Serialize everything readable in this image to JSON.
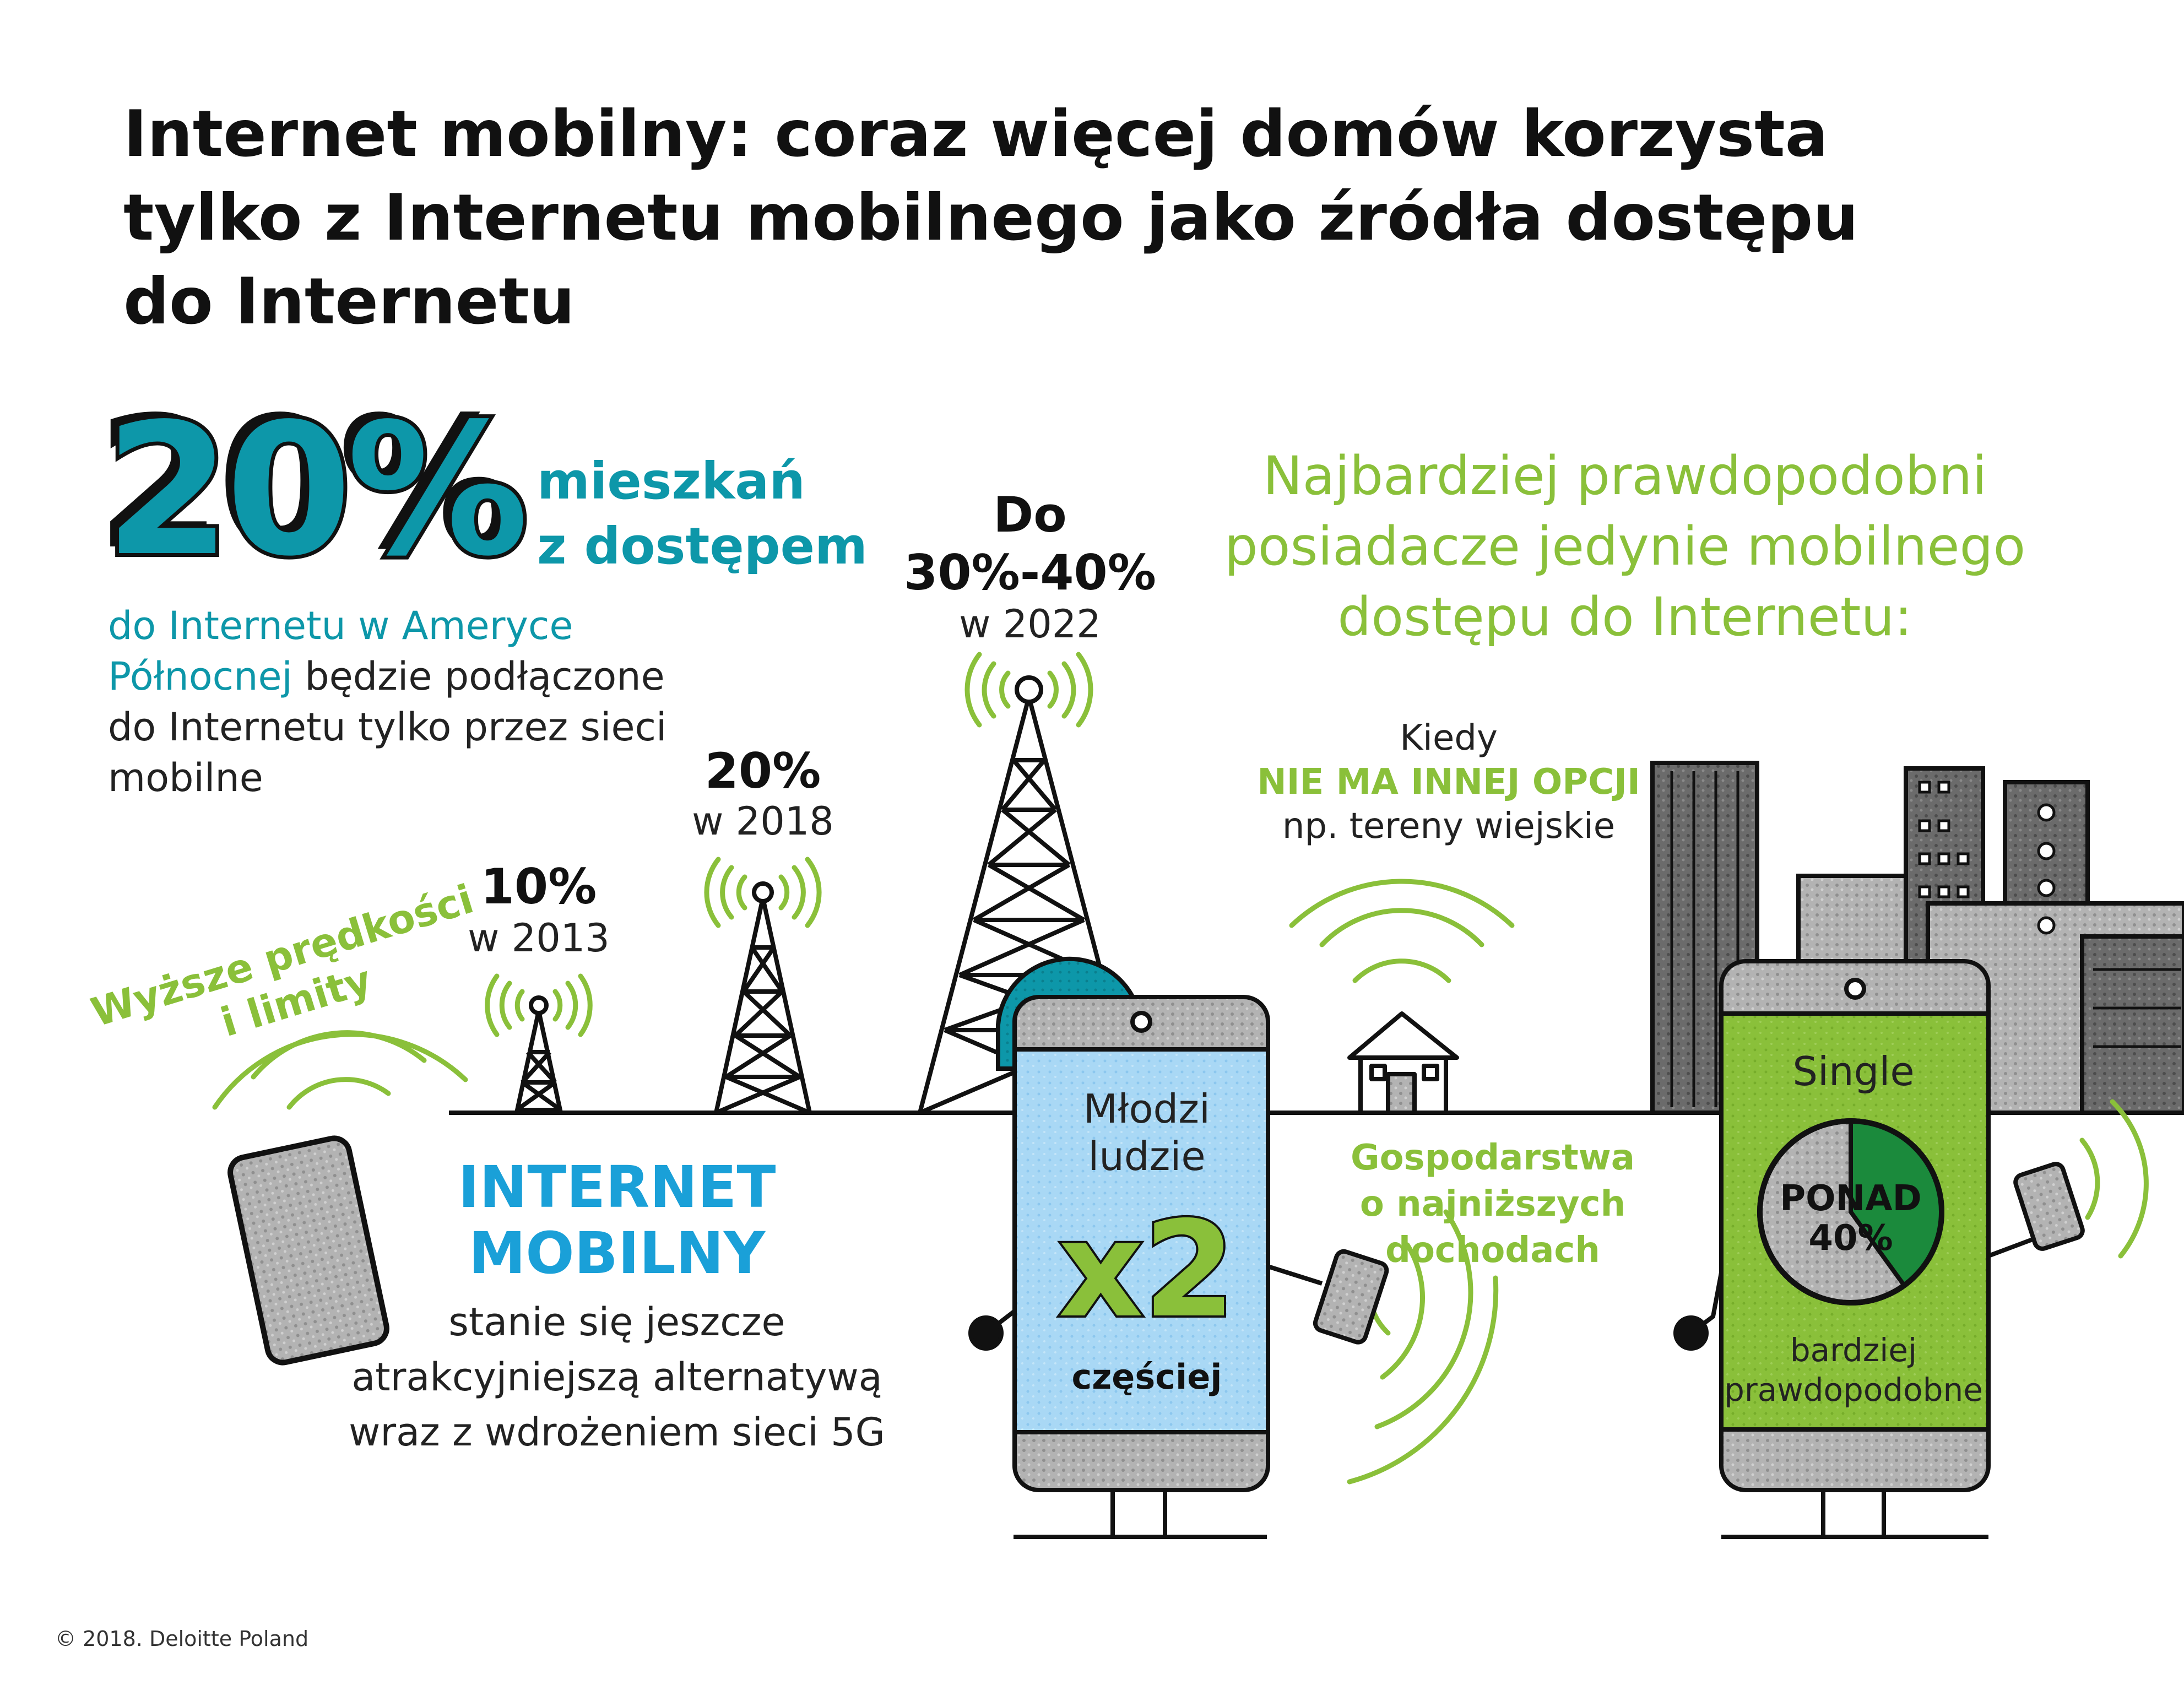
{
  "title": {
    "line1": "Internet mobilny: coraz więcej domów korzysta",
    "line2": "tylko z Internetu mobilnego jako źródła dostępu",
    "line3": "do Internetu"
  },
  "headline_stat": {
    "value": "20%",
    "label_line1": "mieszkań",
    "label_line2": "z dostępem",
    "desc_highlight": "do Internetu w Ameryce Północnej",
    "desc_rest": " będzie podłączone do Internetu tylko przez sieci mobilne"
  },
  "towers": [
    {
      "pct": "10%",
      "year": "w 2013"
    },
    {
      "pct": "20%",
      "year": "w 2018"
    },
    {
      "prefix": "Do",
      "pct": "30%-40%",
      "year": "w 2022"
    }
  ],
  "speed_note": {
    "line1": "Wyższe prędkości",
    "line2": "i limity"
  },
  "mobile_internet": {
    "head_line1": "INTERNET",
    "head_line2": "MOBILNY",
    "body_line1": "stanie się jeszcze",
    "body_line2": "atrakcyjniejszą alternatywą",
    "body_line3": "wraz z wdrożeniem sieci 5G"
  },
  "green_header": {
    "line1": "Najbardziej prawdopodobni",
    "line2": "posiadacze jedynie mobilnego",
    "line3": "dostępu do Internetu:"
  },
  "rural": {
    "line1": "Kiedy",
    "line2": "NIE MA INNEJ OPCJI",
    "line3": "np. tereny wiejskie"
  },
  "young_phone": {
    "line1": "Młodzi",
    "line2": "ludzie",
    "multiplier": "x2",
    "suffix": "częściej"
  },
  "low_income": {
    "line1": "Gospodarstwa",
    "line2": "o najniższych",
    "line3": "dochodach"
  },
  "single_phone": {
    "label": "Single",
    "pie_line1": "PONAD",
    "pie_line2": "40%",
    "pie_fraction": 0.4,
    "bottom_line1": "bardziej",
    "bottom_line2": "prawdopodobne"
  },
  "copyright": "© 2018. Deloitte Poland",
  "colors": {
    "teal": "#0d97a9",
    "green": "#8ac03a",
    "blue": "#1aa0d8",
    "light_blue": "#a9d8f5",
    "gray": "#b5b5b5",
    "dark_gray": "#555555"
  },
  "icons": [
    "tower-icon",
    "signal-waves-icon",
    "phone-icon",
    "house-icon",
    "city-buildings-icon",
    "pie-chart-icon"
  ]
}
